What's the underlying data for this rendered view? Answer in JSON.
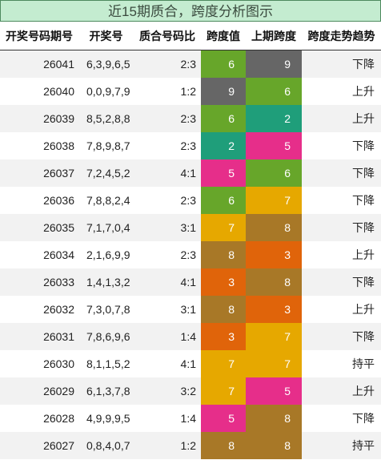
{
  "title": "近15期质合，跨度分析图示",
  "headers": [
    "开奖号码期号",
    "开奖号",
    "质合号码比",
    "跨度值",
    "上期跨度",
    "跨度走势趋势"
  ],
  "span_colors": {
    "2": "#1f9e7a",
    "3": "#e0640a",
    "5": "#e62e8a",
    "6": "#67a62a",
    "7": "#e6a800",
    "8": "#a87827",
    "9": "#666666"
  },
  "rows": [
    {
      "period": "26041",
      "numbers": "6,3,9,6,5",
      "ratio": "2:3",
      "span": "6",
      "prev": "9",
      "trend": "下降"
    },
    {
      "period": "26040",
      "numbers": "0,0,9,7,9",
      "ratio": "1:2",
      "span": "9",
      "prev": "6",
      "trend": "上升"
    },
    {
      "period": "26039",
      "numbers": "8,5,2,8,8",
      "ratio": "2:3",
      "span": "6",
      "prev": "2",
      "trend": "上升"
    },
    {
      "period": "26038",
      "numbers": "7,8,9,8,7",
      "ratio": "2:3",
      "span": "2",
      "prev": "5",
      "trend": "下降"
    },
    {
      "period": "26037",
      "numbers": "7,2,4,5,2",
      "ratio": "4:1",
      "span": "5",
      "prev": "6",
      "trend": "下降"
    },
    {
      "period": "26036",
      "numbers": "7,8,8,2,4",
      "ratio": "2:3",
      "span": "6",
      "prev": "7",
      "trend": "下降"
    },
    {
      "period": "26035",
      "numbers": "7,1,7,0,4",
      "ratio": "3:1",
      "span": "7",
      "prev": "8",
      "trend": "下降"
    },
    {
      "period": "26034",
      "numbers": "2,1,6,9,9",
      "ratio": "2:3",
      "span": "8",
      "prev": "3",
      "trend": "上升"
    },
    {
      "period": "26033",
      "numbers": "1,4,1,3,2",
      "ratio": "4:1",
      "span": "3",
      "prev": "8",
      "trend": "下降"
    },
    {
      "period": "26032",
      "numbers": "7,3,0,7,8",
      "ratio": "3:1",
      "span": "8",
      "prev": "3",
      "trend": "上升"
    },
    {
      "period": "26031",
      "numbers": "7,8,6,9,6",
      "ratio": "1:4",
      "span": "3",
      "prev": "7",
      "trend": "下降"
    },
    {
      "period": "26030",
      "numbers": "8,1,1,5,2",
      "ratio": "4:1",
      "span": "7",
      "prev": "7",
      "trend": "持平"
    },
    {
      "period": "26029",
      "numbers": "6,1,3,7,8",
      "ratio": "3:2",
      "span": "7",
      "prev": "5",
      "trend": "上升"
    },
    {
      "period": "26028",
      "numbers": "4,9,9,9,5",
      "ratio": "1:4",
      "span": "5",
      "prev": "8",
      "trend": "下降"
    },
    {
      "period": "26027",
      "numbers": "0,8,4,0,7",
      "ratio": "1:2",
      "span": "8",
      "prev": "8",
      "trend": "持平"
    }
  ]
}
